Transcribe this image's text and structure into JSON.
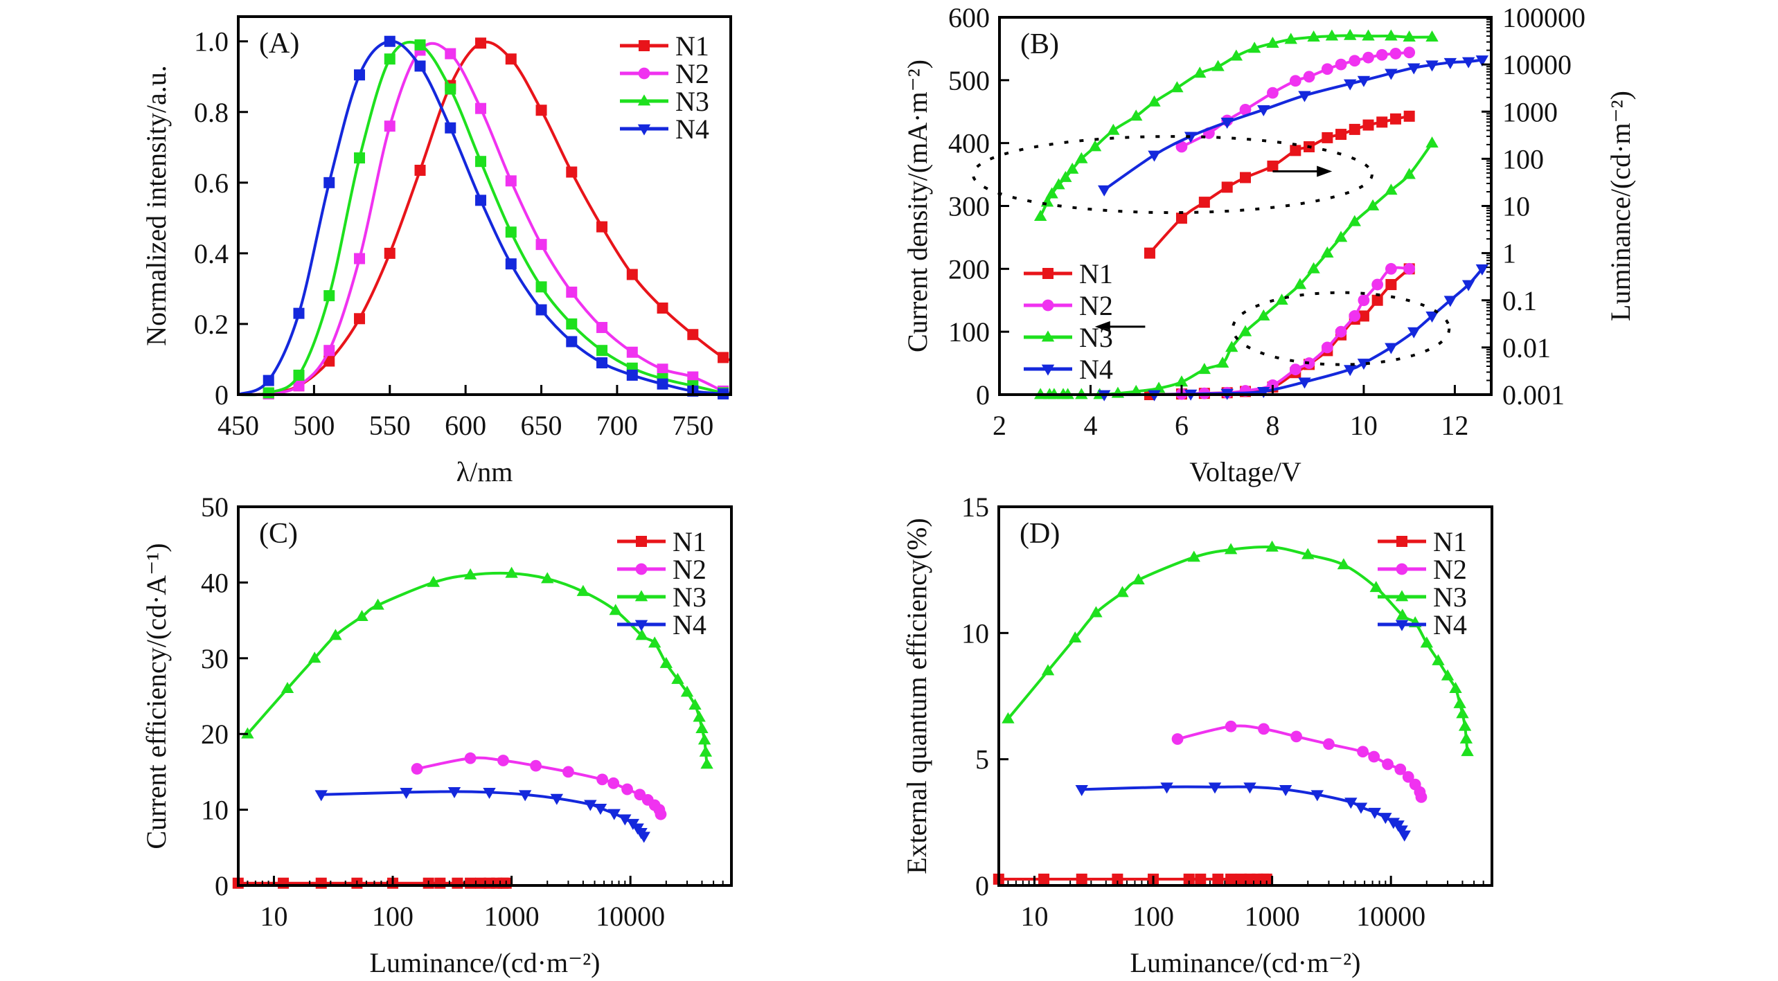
{
  "figure": {
    "series_colors": {
      "N1": "#e8141a",
      "N2": "#f032f0",
      "N3": "#1ee01e",
      "N4": "#1428dc"
    },
    "legend_labels": [
      "N1",
      "N2",
      "N3",
      "N4"
    ]
  },
  "chart_data": [
    {
      "id": "A",
      "type": "line",
      "panel_label": "(A)",
      "title": "",
      "xlabel": "λ/nm",
      "ylabel": "Normalized intensity/a.u.",
      "xlim": [
        450,
        775
      ],
      "ylim": [
        0,
        1.07
      ],
      "xscale": "linear",
      "xticks": [
        450,
        500,
        550,
        600,
        650,
        700,
        750
      ],
      "xtick_labels": [
        "450",
        "500",
        "550",
        "600",
        "650",
        "700",
        "750"
      ],
      "yticks": [
        0,
        0.2,
        0.4,
        0.6,
        0.8,
        1.0
      ],
      "ytick_labels": [
        "0",
        "0.2",
        "0.4",
        "0.6",
        "0.8",
        "1.0"
      ],
      "legend_position": "top-right",
      "marker_style": "square",
      "series": [
        {
          "name": "N1",
          "x": [
            450,
            470,
            490,
            510,
            530,
            550,
            570,
            590,
            610,
            630,
            650,
            670,
            690,
            710,
            730,
            750,
            770,
            775
          ],
          "y": [
            0,
            0.003,
            0.025,
            0.095,
            0.215,
            0.4,
            0.635,
            0.875,
            0.995,
            0.95,
            0.805,
            0.63,
            0.475,
            0.34,
            0.245,
            0.17,
            0.105,
            0.1
          ]
        },
        {
          "name": "N2",
          "x": [
            450,
            470,
            490,
            510,
            530,
            550,
            570,
            590,
            610,
            630,
            650,
            670,
            690,
            710,
            730,
            750,
            770,
            775
          ],
          "y": [
            0,
            0.002,
            0.025,
            0.125,
            0.385,
            0.76,
            0.975,
            0.965,
            0.81,
            0.605,
            0.425,
            0.29,
            0.19,
            0.12,
            0.072,
            0.05,
            0.01,
            0.005
          ]
        },
        {
          "name": "N3",
          "x": [
            450,
            470,
            490,
            510,
            530,
            550,
            570,
            590,
            610,
            630,
            650,
            670,
            690,
            710,
            730,
            750,
            770,
            775
          ],
          "y": [
            0,
            0.005,
            0.055,
            0.28,
            0.67,
            0.95,
            0.99,
            0.865,
            0.66,
            0.46,
            0.305,
            0.2,
            0.125,
            0.075,
            0.045,
            0.025,
            0.005,
            0.003
          ]
        },
        {
          "name": "N4",
          "x": [
            450,
            470,
            490,
            510,
            530,
            550,
            570,
            590,
            610,
            630,
            650,
            670,
            690,
            710,
            730,
            750,
            770,
            775
          ],
          "y": [
            0,
            0.04,
            0.23,
            0.6,
            0.905,
            1.0,
            0.93,
            0.755,
            0.55,
            0.37,
            0.24,
            0.15,
            0.09,
            0.055,
            0.03,
            0.01,
            0.002,
            0.001
          ]
        }
      ]
    },
    {
      "id": "B",
      "type": "line",
      "panel_label": "(B)",
      "title": "",
      "xlabel": "Voltage/V",
      "ylabel": "Current density/(mA·m⁻²)",
      "ylabel_right": "Luminance/(cd·m⁻²)",
      "xlim": [
        2,
        12.8
      ],
      "ylim": [
        0,
        600
      ],
      "ylim_right_log10": [
        -3,
        5
      ],
      "xscale": "linear",
      "yscale_right": "log",
      "xticks": [
        2,
        4,
        6,
        8,
        10,
        12
      ],
      "xtick_labels": [
        "2",
        "4",
        "6",
        "8",
        "10",
        "12"
      ],
      "yticks": [
        0,
        100,
        200,
        300,
        400,
        500,
        600
      ],
      "ytick_labels": [
        "0",
        "100",
        "200",
        "300",
        "400",
        "500",
        "600"
      ],
      "yticks_right": [
        0.001,
        0.01,
        0.1,
        1,
        10,
        100,
        1000,
        10000,
        100000
      ],
      "ytick_labels_right": [
        "0.001",
        "0.01",
        "0.1",
        "1",
        "10",
        "100",
        "1000",
        "10000",
        "100000"
      ],
      "legend_position": "lower-left",
      "annotations": [
        "dotted ellipse around luminance curves with arrow pointing right (right axis)",
        "dotted ellipse around current-density curves with arrow pointing left (left axis)"
      ],
      "current_density_series": [
        {
          "name": "N1",
          "x": [
            5.3,
            6.0,
            6.5,
            7.0,
            7.4,
            8.0,
            8.5,
            8.8,
            9.2,
            9.5,
            9.8,
            10.0,
            10.3,
            10.6,
            11.0
          ],
          "y": [
            0,
            1,
            2,
            3,
            5,
            12,
            35,
            48,
            70,
            95,
            120,
            125,
            150,
            175,
            200
          ]
        },
        {
          "name": "N2",
          "x": [
            6.0,
            6.5,
            7.0,
            7.4,
            8.0,
            8.5,
            8.8,
            9.2,
            9.5,
            9.8,
            10.0,
            10.3,
            10.6,
            11.0
          ],
          "y": [
            1,
            2,
            3,
            6,
            15,
            40,
            50,
            75,
            100,
            125,
            150,
            175,
            200,
            200
          ]
        },
        {
          "name": "N3",
          "x": [
            2.9,
            3.1,
            3.2,
            3.4,
            3.5,
            3.8,
            4.2,
            4.6,
            5.0,
            5.5,
            6.0,
            6.5,
            6.9,
            7.1,
            7.4,
            7.8,
            8.2,
            8.6,
            8.9,
            9.2,
            9.5,
            9.8,
            10.2,
            10.6,
            11.0,
            11.5
          ],
          "y": [
            0,
            0,
            0,
            0,
            0,
            0,
            0,
            2,
            5,
            10,
            20,
            40,
            50,
            75,
            100,
            125,
            150,
            175,
            200,
            225,
            250,
            275,
            300,
            325,
            350,
            400
          ]
        },
        {
          "name": "N4",
          "x": [
            4.3,
            5.4,
            6.2,
            7.0,
            7.8,
            8.7,
            9.7,
            10.0,
            10.6,
            11.1,
            11.5,
            11.9,
            12.3,
            12.6
          ],
          "y": [
            0,
            0,
            1,
            2,
            5,
            20,
            40,
            50,
            75,
            100,
            125,
            150,
            175,
            200
          ]
        }
      ],
      "luminance_series": [
        {
          "name": "N1",
          "x": [
            5.3,
            6.0,
            6.5,
            7.0,
            7.4,
            8.0,
            8.5,
            8.8,
            9.2,
            9.5,
            9.8,
            10.1,
            10.4,
            10.7,
            11.0
          ],
          "y": [
            1.0,
            5.5,
            12,
            25,
            40,
            70,
            150,
            180,
            280,
            330,
            420,
            520,
            600,
            700,
            800
          ]
        },
        {
          "name": "N2",
          "x": [
            6.0,
            6.6,
            7.0,
            7.4,
            8.0,
            8.5,
            8.8,
            9.2,
            9.5,
            9.8,
            10.1,
            10.4,
            10.7,
            11.0
          ],
          "y": [
            180,
            350,
            650,
            1100,
            2500,
            4500,
            5500,
            8000,
            10000,
            12000,
            14000,
            16000,
            17000,
            18000
          ]
        },
        {
          "name": "N3",
          "x": [
            2.9,
            3.05,
            3.15,
            3.3,
            3.45,
            3.6,
            3.8,
            4.1,
            4.5,
            5.0,
            5.4,
            5.9,
            6.4,
            6.8,
            7.2,
            7.6,
            8.0,
            8.4,
            8.9,
            9.3,
            9.7,
            10.1,
            10.6,
            11.0,
            11.5
          ],
          "y": [
            6,
            12,
            18,
            28,
            40,
            60,
            100,
            180,
            400,
            800,
            1600,
            3200,
            6500,
            9000,
            15000,
            22000,
            28000,
            34000,
            38000,
            40000,
            41000,
            40000,
            40000,
            38000,
            38000
          ]
        },
        {
          "name": "N4",
          "x": [
            4.3,
            5.4,
            6.2,
            7.0,
            7.8,
            8.7,
            9.7,
            10.0,
            10.6,
            11.1,
            11.5,
            11.9,
            12.3,
            12.6
          ],
          "y": [
            22,
            120,
            300,
            600,
            1100,
            2200,
            3900,
            4600,
            6500,
            8500,
            9800,
            11000,
            11500,
            12500
          ]
        }
      ]
    },
    {
      "id": "C",
      "type": "line",
      "panel_label": "(C)",
      "title": "",
      "xlabel": "Luminance/(cd·m⁻²)",
      "ylabel": "Current efficiency/(cd·A⁻¹)",
      "xlim_log10": [
        0.7,
        4.85
      ],
      "ylim": [
        0,
        50
      ],
      "xscale": "log",
      "xticks": [
        10,
        100,
        1000,
        10000
      ],
      "xtick_labels": [
        "10",
        "100",
        "1000",
        "10000"
      ],
      "yticks": [
        0,
        10,
        20,
        30,
        40,
        50
      ],
      "ytick_labels": [
        "0",
        "10",
        "20",
        "30",
        "40",
        "50"
      ],
      "legend_position": "top-right",
      "series": [
        {
          "name": "N1",
          "x": [
            5,
            12,
            25,
            50,
            100,
            200,
            250,
            350,
            450,
            550,
            650,
            750,
            850,
            900
          ],
          "y": [
            0.3,
            0.3,
            0.3,
            0.3,
            0.3,
            0.3,
            0.3,
            0.3,
            0.3,
            0.3,
            0.3,
            0.3,
            0.3,
            0.3
          ]
        },
        {
          "name": "N2",
          "x": [
            160,
            450,
            850,
            1600,
            3000,
            5800,
            7200,
            9400,
            12000,
            14000,
            16000,
            17500,
            18000
          ],
          "y": [
            15.4,
            16.8,
            16.5,
            15.8,
            15.0,
            14.0,
            13.5,
            12.7,
            12.0,
            11.3,
            10.6,
            10.0,
            9.4
          ]
        },
        {
          "name": "N3",
          "x": [
            6,
            13,
            22,
            33,
            55,
            75,
            220,
            450,
            1000,
            2000,
            4000,
            7500,
            12500,
            16000,
            20000,
            25000,
            30000,
            35000,
            38000,
            40000,
            42000,
            43000,
            44000
          ],
          "y": [
            20.0,
            26.0,
            30.0,
            33.0,
            35.5,
            37.0,
            40.0,
            41.0,
            41.2,
            40.5,
            38.8,
            36.3,
            33.0,
            32.0,
            29.3,
            27.2,
            25.5,
            23.8,
            22.2,
            20.7,
            19.2,
            17.6,
            16.0
          ]
        },
        {
          "name": "N4",
          "x": [
            25,
            130,
            330,
            650,
            1300,
            2400,
            4600,
            5600,
            7300,
            9000,
            10500,
            11500,
            12300,
            13000
          ],
          "y": [
            12.0,
            12.3,
            12.4,
            12.3,
            12.0,
            11.5,
            10.7,
            10.2,
            9.5,
            8.8,
            8.2,
            7.6,
            7.0,
            6.5
          ]
        }
      ]
    },
    {
      "id": "D",
      "type": "line",
      "panel_label": "(D)",
      "title": "",
      "xlabel": "Luminance/(cd·m⁻²)",
      "ylabel": "External quantum efficiency(%)",
      "xlim_log10": [
        0.7,
        4.85
      ],
      "ylim": [
        0,
        15
      ],
      "xscale": "log",
      "xticks": [
        10,
        100,
        1000,
        10000
      ],
      "xtick_labels": [
        "10",
        "100",
        "1000",
        "10000"
      ],
      "yticks": [
        0,
        5,
        10,
        15
      ],
      "ytick_labels": [
        "0",
        "5",
        "10",
        "15"
      ],
      "legend_position": "top-right",
      "series": [
        {
          "name": "N1",
          "x": [
            5,
            12,
            25,
            50,
            100,
            200,
            250,
            350,
            450,
            550,
            650,
            750,
            850,
            900
          ],
          "y": [
            0.25,
            0.25,
            0.25,
            0.25,
            0.25,
            0.25,
            0.25,
            0.25,
            0.25,
            0.25,
            0.25,
            0.25,
            0.25,
            0.25
          ]
        },
        {
          "name": "N2",
          "x": [
            160,
            450,
            850,
            1600,
            3000,
            5800,
            7200,
            9400,
            12000,
            14000,
            16000,
            17500,
            18000
          ],
          "y": [
            5.8,
            6.3,
            6.2,
            5.9,
            5.6,
            5.3,
            5.1,
            4.8,
            4.6,
            4.3,
            4.0,
            3.7,
            3.5
          ]
        },
        {
          "name": "N3",
          "x": [
            6,
            13,
            22,
            33,
            55,
            75,
            220,
            450,
            1000,
            2000,
            4000,
            7500,
            12500,
            16000,
            20000,
            25000,
            30000,
            35000,
            38000,
            40000,
            42000,
            43000,
            44000
          ],
          "y": [
            6.6,
            8.5,
            9.8,
            10.8,
            11.6,
            12.1,
            13.0,
            13.3,
            13.4,
            13.1,
            12.7,
            11.8,
            10.7,
            10.4,
            9.6,
            8.9,
            8.3,
            7.8,
            7.2,
            6.8,
            6.3,
            5.8,
            5.3
          ]
        },
        {
          "name": "N4",
          "x": [
            25,
            130,
            330,
            650,
            1300,
            2400,
            4600,
            5600,
            7300,
            9000,
            10500,
            11500,
            12300,
            13000
          ],
          "y": [
            3.8,
            3.9,
            3.9,
            3.9,
            3.8,
            3.6,
            3.3,
            3.1,
            2.9,
            2.7,
            2.5,
            2.4,
            2.2,
            2.0
          ]
        }
      ]
    }
  ]
}
